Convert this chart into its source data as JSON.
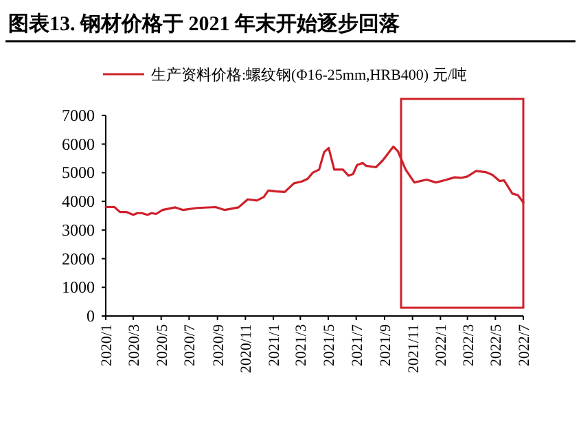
{
  "chart_data": {
    "type": "line",
    "title": "图表13. 钢材价格于 2021 年末开始逐步回落",
    "legend": "top",
    "x": [
      "2020-01-01",
      "2020-01-20",
      "2020-02-01",
      "2020-02-15",
      "2020-03-01",
      "2020-03-10",
      "2020-03-20",
      "2020-04-01",
      "2020-04-10",
      "2020-04-20",
      "2020-05-04",
      "2020-06-01",
      "2020-06-18",
      "2020-07-18",
      "2020-08-28",
      "2020-09-17",
      "2020-10-17",
      "2020-11-06",
      "2020-11-26",
      "2020-12-11",
      "2020-12-21",
      "2021-01-06",
      "2021-01-26",
      "2021-02-15",
      "2021-03-05",
      "2021-03-17",
      "2021-03-28",
      "2021-04-11",
      "2021-04-22",
      "2021-05-02",
      "2021-05-14",
      "2021-06-02",
      "2021-06-14",
      "2021-06-24",
      "2021-07-03",
      "2021-07-15",
      "2021-07-23",
      "2021-08-13",
      "2021-08-28",
      "2021-09-20",
      "2021-09-30",
      "2021-10-17",
      "2021-11-05",
      "2021-12-02",
      "2021-12-22",
      "2022-01-11",
      "2022-02-01",
      "2022-02-15",
      "2022-03-01",
      "2022-03-20",
      "2022-04-10",
      "2022-04-25",
      "2022-05-10",
      "2022-05-20",
      "2022-06-07",
      "2022-06-19",
      "2022-07-01"
    ],
    "series": [
      {
        "name": "生产资料价格:螺纹钢(Φ16-25mm,HRB400) 元/吨",
        "color": "#d0202a",
        "values": [
          3800,
          3800,
          3630,
          3630,
          3530,
          3590,
          3590,
          3530,
          3590,
          3560,
          3700,
          3790,
          3700,
          3770,
          3800,
          3700,
          3790,
          4070,
          4030,
          4150,
          4380,
          4350,
          4330,
          4630,
          4700,
          4790,
          5000,
          5110,
          5720,
          5860,
          5110,
          5110,
          4900,
          4950,
          5270,
          5340,
          5240,
          5190,
          5430,
          5910,
          5750,
          5110,
          4660,
          4760,
          4660,
          4740,
          4840,
          4820,
          4870,
          5060,
          5020,
          4920,
          4710,
          4730,
          4270,
          4220,
          3960
        ]
      }
    ],
    "xlim": [
      "2020-01-01",
      "2022-07-01"
    ],
    "xticks": [
      {
        "value": "2020-01-01",
        "label": "2020/1"
      },
      {
        "value": "2020-03-01",
        "label": "2020/3"
      },
      {
        "value": "2020-05-01",
        "label": "2020/5"
      },
      {
        "value": "2020-07-01",
        "label": "2020/7"
      },
      {
        "value": "2020-09-01",
        "label": "2020/9"
      },
      {
        "value": "2020-11-01",
        "label": "2020/11"
      },
      {
        "value": "2021-01-01",
        "label": "2021/1"
      },
      {
        "value": "2021-03-01",
        "label": "2021/3"
      },
      {
        "value": "2021-05-01",
        "label": "2021/5"
      },
      {
        "value": "2021-07-01",
        "label": "2021/7"
      },
      {
        "value": "2021-09-01",
        "label": "2021/9"
      },
      {
        "value": "2021-11-01",
        "label": "2021/11"
      },
      {
        "value": "2022-01-01",
        "label": "2022/1"
      },
      {
        "value": "2022-03-01",
        "label": "2022/3"
      },
      {
        "value": "2022-05-01",
        "label": "2022/5"
      },
      {
        "value": "2022-07-01",
        "label": "2022/7"
      }
    ],
    "ylim": [
      0,
      7000
    ],
    "yticks": [
      0,
      1000,
      2000,
      3000,
      4000,
      5000,
      6000,
      7000
    ]
  }
}
